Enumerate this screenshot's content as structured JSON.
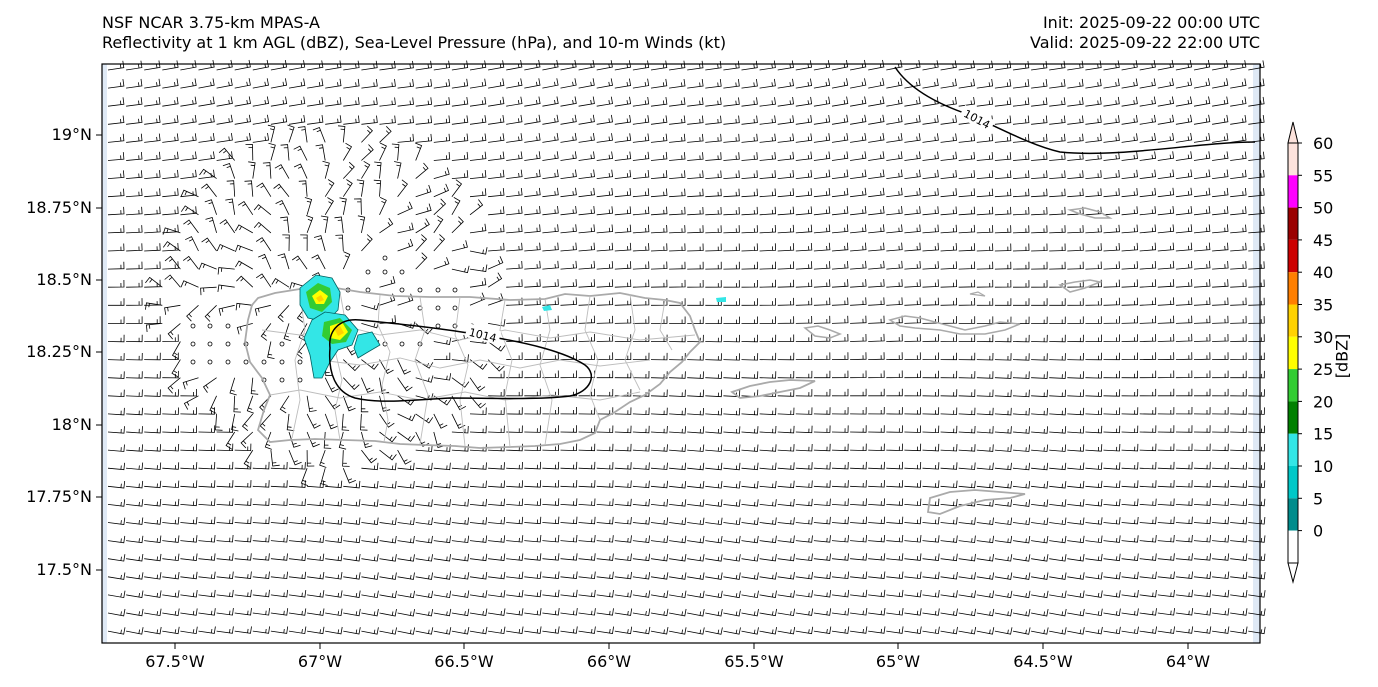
{
  "title": {
    "model": "NSF NCAR 3.75-km MPAS-A",
    "fields": "Reflectivity at 1 km AGL (dBZ), Sea-Level Pressure (hPa), and 10-m Winds (kt)",
    "init": "Init: 2025-09-22 00:00 UTC",
    "valid": "Valid: 2025-09-22 22:00 UTC"
  },
  "axes": {
    "lat_ticks": [
      "19°N",
      "18.75°N",
      "18.5°N",
      "18.25°N",
      "18°N",
      "17.75°N",
      "17.5°N"
    ],
    "lon_ticks": [
      "67.5°W",
      "67°W",
      "66.5°W",
      "66°W",
      "65.5°W",
      "65°W",
      "64.5°W",
      "64°W"
    ]
  },
  "contours": {
    "slp_label_1": "1014",
    "slp_label_2": "1014"
  },
  "colorbar": {
    "label": "[dBZ]",
    "ticks": [
      "60",
      "55",
      "50",
      "45",
      "40",
      "35",
      "30",
      "25",
      "20",
      "15",
      "10",
      "5",
      "0"
    ],
    "colors": [
      "#fde3dc",
      "#ff00ff",
      "#9a0000",
      "#cc0000",
      "#ff7f00",
      "#ffd200",
      "#ffff00",
      "#33cc33",
      "#008000",
      "#33e6e6",
      "#00c8c8",
      "#008c8c",
      "#ffffff"
    ]
  }
}
